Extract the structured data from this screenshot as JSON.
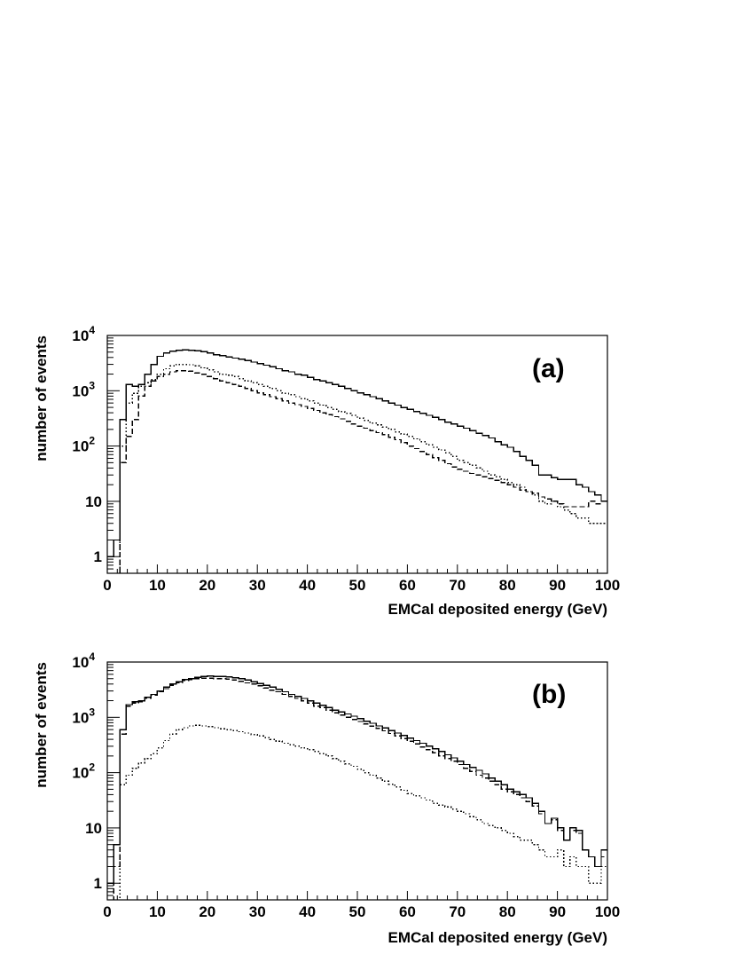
{
  "chart_data": [
    {
      "type": "line",
      "label": "(a)",
      "xlabel": "EMCal deposited energy (GeV)",
      "ylabel": "number of events",
      "yscale": "log",
      "xlim": [
        0,
        100
      ],
      "ylim": [
        0.5,
        10000
      ],
      "x_ticks": [
        0,
        10,
        20,
        30,
        40,
        50,
        60,
        70,
        80,
        90,
        100
      ],
      "y_ticks": [
        {
          "value": 1,
          "label": "1"
        },
        {
          "value": 10,
          "label": "10"
        },
        {
          "value": 100,
          "label": "10",
          "sup": "2"
        },
        {
          "value": 1000,
          "label": "10",
          "sup": "3"
        },
        {
          "value": 10000,
          "label": "10",
          "sup": "4"
        }
      ],
      "grid": false,
      "bin_width": 1.25,
      "x_start": 0,
      "series": [
        {
          "style": "solid",
          "values": [
            1,
            2,
            300,
            1300,
            1200,
            1300,
            2000,
            3000,
            4200,
            4800,
            5200,
            5400,
            5500,
            5400,
            5300,
            5100,
            4800,
            4500,
            4300,
            4100,
            3900,
            3700,
            3500,
            3300,
            3100,
            2900,
            2700,
            2500,
            2300,
            2200,
            2000,
            1900,
            1750,
            1600,
            1500,
            1400,
            1300,
            1200,
            1100,
            1000,
            920,
            850,
            780,
            720,
            660,
            600,
            550,
            500,
            460,
            420,
            390,
            360,
            330,
            300,
            270,
            250,
            230,
            210,
            190,
            170,
            155,
            140,
            120,
            105,
            95,
            80,
            65,
            55,
            45,
            30,
            30,
            27,
            25,
            25,
            25,
            20,
            18,
            15,
            13,
            10,
            12,
            8,
            6,
            10,
            9,
            5,
            2,
            2,
            1,
            2,
            1,
            2,
            1,
            2,
            1,
            0.5,
            1,
            2,
            1,
            1,
            2,
            1,
            1
          ]
        },
        {
          "style": "dotted",
          "values": [
            0,
            0,
            100,
            600,
            900,
            1200,
            1400,
            1600,
            2000,
            2500,
            2800,
            3000,
            3000,
            2950,
            2800,
            2600,
            2400,
            2200,
            2000,
            1900,
            1800,
            1650,
            1500,
            1400,
            1300,
            1200,
            1100,
            1000,
            900,
            850,
            780,
            720,
            660,
            600,
            550,
            500,
            460,
            420,
            390,
            360,
            320,
            290,
            260,
            240,
            220,
            200,
            180,
            165,
            150,
            135,
            120,
            105,
            95,
            85,
            75,
            65,
            55,
            50,
            45,
            40,
            35,
            30,
            28,
            25,
            22,
            20,
            18,
            15,
            13,
            10,
            9,
            10,
            8,
            7,
            6,
            5,
            5,
            4,
            4,
            4,
            3,
            3
          ]
        },
        {
          "style": "dashed",
          "values": [
            0,
            0,
            50,
            150,
            300,
            800,
            1200,
            1500,
            1800,
            2000,
            2200,
            2300,
            2300,
            2250,
            2100,
            2000,
            1800,
            1650,
            1500,
            1400,
            1300,
            1200,
            1100,
            1000,
            920,
            850,
            780,
            720,
            660,
            600,
            560,
            520,
            480,
            440,
            400,
            370,
            340,
            310,
            280,
            250,
            230,
            210,
            190,
            175,
            160,
            145,
            130,
            115,
            100,
            90,
            80,
            70,
            62,
            55,
            48,
            42,
            38,
            35,
            32,
            30,
            28,
            26,
            24,
            22,
            20,
            18,
            16,
            15,
            14,
            12,
            11,
            10,
            9,
            8,
            8,
            8,
            8,
            10,
            9,
            10,
            10,
            9,
            8,
            6,
            4,
            3,
            2,
            1,
            1,
            1
          ]
        }
      ]
    },
    {
      "type": "line",
      "label": "(b)",
      "xlabel": "EMCal deposited energy (GeV)",
      "ylabel": "number of events",
      "yscale": "log",
      "xlim": [
        0,
        100
      ],
      "ylim": [
        0.5,
        10000
      ],
      "x_ticks": [
        0,
        10,
        20,
        30,
        40,
        50,
        60,
        70,
        80,
        90,
        100
      ],
      "y_ticks": [
        {
          "value": 1,
          "label": "1"
        },
        {
          "value": 10,
          "label": "10"
        },
        {
          "value": 100,
          "label": "10",
          "sup": "2"
        },
        {
          "value": 1000,
          "label": "10",
          "sup": "3"
        },
        {
          "value": 10000,
          "label": "10",
          "sup": "4"
        }
      ],
      "grid": false,
      "bin_width": 1.25,
      "x_start": 0,
      "series": [
        {
          "style": "solid",
          "values": [
            1,
            5,
            600,
            1700,
            1900,
            2000,
            2300,
            2600,
            3000,
            3500,
            4000,
            4400,
            4800,
            5000,
            5300,
            5500,
            5600,
            5500,
            5500,
            5400,
            5200,
            5000,
            4700,
            4400,
            4100,
            3800,
            3500,
            3200,
            2900,
            2600,
            2400,
            2200,
            2000,
            1800,
            1650,
            1500,
            1350,
            1250,
            1150,
            1050,
            950,
            850,
            780,
            700,
            640,
            580,
            520,
            470,
            420,
            380,
            340,
            300,
            270,
            240,
            210,
            185,
            160,
            140,
            125,
            110,
            95,
            80,
            70,
            60,
            50,
            45,
            40,
            35,
            28,
            20,
            12,
            15,
            10,
            6,
            10,
            9,
            4,
            3,
            2,
            4,
            3,
            1,
            0.5,
            1,
            2,
            1,
            0.5,
            1,
            2,
            2,
            1,
            0.5,
            1
          ]
        },
        {
          "style": "dashed",
          "values": [
            0,
            2,
            500,
            1600,
            1800,
            1900,
            2200,
            2500,
            2900,
            3300,
            3800,
            4200,
            4600,
            4800,
            5000,
            5100,
            5100,
            5000,
            5000,
            4900,
            4700,
            4500,
            4200,
            4000,
            3700,
            3400,
            3100,
            2900,
            2600,
            2400,
            2200,
            2000,
            1800,
            1600,
            1500,
            1350,
            1200,
            1100,
            1000,
            920,
            840,
            760,
            690,
            630,
            570,
            510,
            460,
            410,
            370,
            330,
            290,
            260,
            230,
            200,
            180,
            160,
            140,
            120,
            105,
            90,
            80,
            70,
            60,
            50,
            45,
            40,
            35,
            30,
            25,
            18,
            12,
            14,
            9,
            6,
            9,
            8,
            4,
            3,
            2,
            3,
            2,
            1,
            0.5,
            1,
            2,
            1,
            0.5,
            1,
            2,
            2,
            1
          ]
        },
        {
          "style": "dotted",
          "values": [
            0,
            0,
            60,
            90,
            120,
            150,
            180,
            220,
            280,
            380,
            500,
            600,
            650,
            700,
            720,
            700,
            680,
            650,
            620,
            600,
            580,
            550,
            520,
            490,
            460,
            430,
            400,
            370,
            340,
            320,
            300,
            280,
            260,
            240,
            220,
            200,
            180,
            160,
            145,
            130,
            115,
            100,
            90,
            80,
            70,
            62,
            55,
            48,
            42,
            38,
            35,
            32,
            28,
            26,
            24,
            22,
            20,
            18,
            16,
            14,
            12,
            11,
            10,
            9,
            8,
            7,
            6,
            6,
            5,
            4,
            3,
            3,
            4,
            2,
            3,
            2,
            2,
            1,
            1,
            2,
            1,
            1,
            1,
            1
          ]
        }
      ]
    }
  ]
}
